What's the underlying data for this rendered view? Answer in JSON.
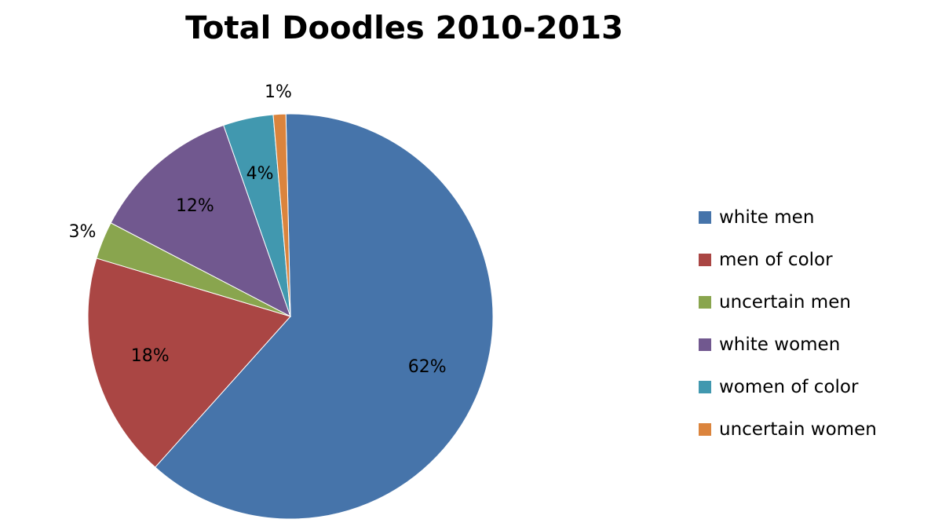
{
  "chart_data": {
    "type": "pie",
    "title": "Total Doodles 2010-2013",
    "legend_position": "right",
    "slices": [
      {
        "name": "white men",
        "value": 62,
        "label": "62%",
        "color": "#4674AA"
      },
      {
        "name": "men of color",
        "value": 18,
        "label": "18%",
        "color": "#AA4644"
      },
      {
        "name": "uncertain men",
        "value": 3,
        "label": "3%",
        "color": "#89A54E"
      },
      {
        "name": "white women",
        "value": 12,
        "label": "12%",
        "color": "#71588F"
      },
      {
        "name": "women of color",
        "value": 4,
        "label": "4%",
        "color": "#4198AF"
      },
      {
        "name": "uncertain women",
        "value": 1,
        "label": "1%",
        "color": "#DB843D"
      }
    ]
  }
}
